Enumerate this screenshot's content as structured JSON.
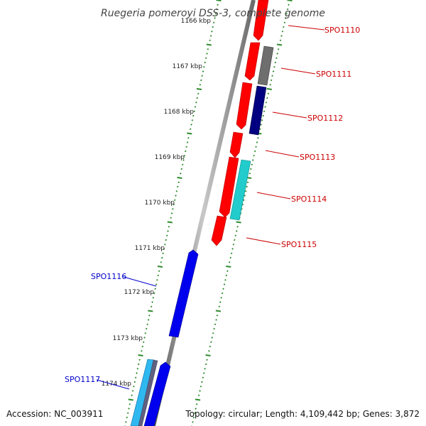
{
  "title": "Ruegeria pomeroyi DSS-3, complete genome",
  "footer": {
    "accession": "Accession: NC_003911",
    "topology": "Topology: circular; Length: 4,109,442 bp; Genes: 3,872"
  },
  "colors": {
    "backbone": "#8a8a8a",
    "tick": "#2e8b2e",
    "label_right": "#cc0000",
    "label_left": "#0000cc",
    "red": "#ff0000",
    "gray": "#6e6e6e",
    "navy": "#000080",
    "cyan": "#22cccc",
    "blue": "#0000ee",
    "skyblue": "#2fb8f0",
    "slate": "#606080"
  },
  "scale_labels": [
    "1166 kbp",
    "1167 kbp",
    "1168 kbp",
    "1169 kbp",
    "1170 kbp",
    "1171 kbp",
    "1172 kbp",
    "1173 kbp",
    "1174 kbp"
  ],
  "labels": {
    "spo1110": "SPO1110",
    "spo1111": "SPO1111",
    "spo1112": "SPO1112",
    "spo1113": "SPO1113",
    "spo1114": "SPO1114",
    "spo1115": "SPO1115",
    "spo1116": "SPO1116",
    "spo1117": "SPO1117"
  }
}
